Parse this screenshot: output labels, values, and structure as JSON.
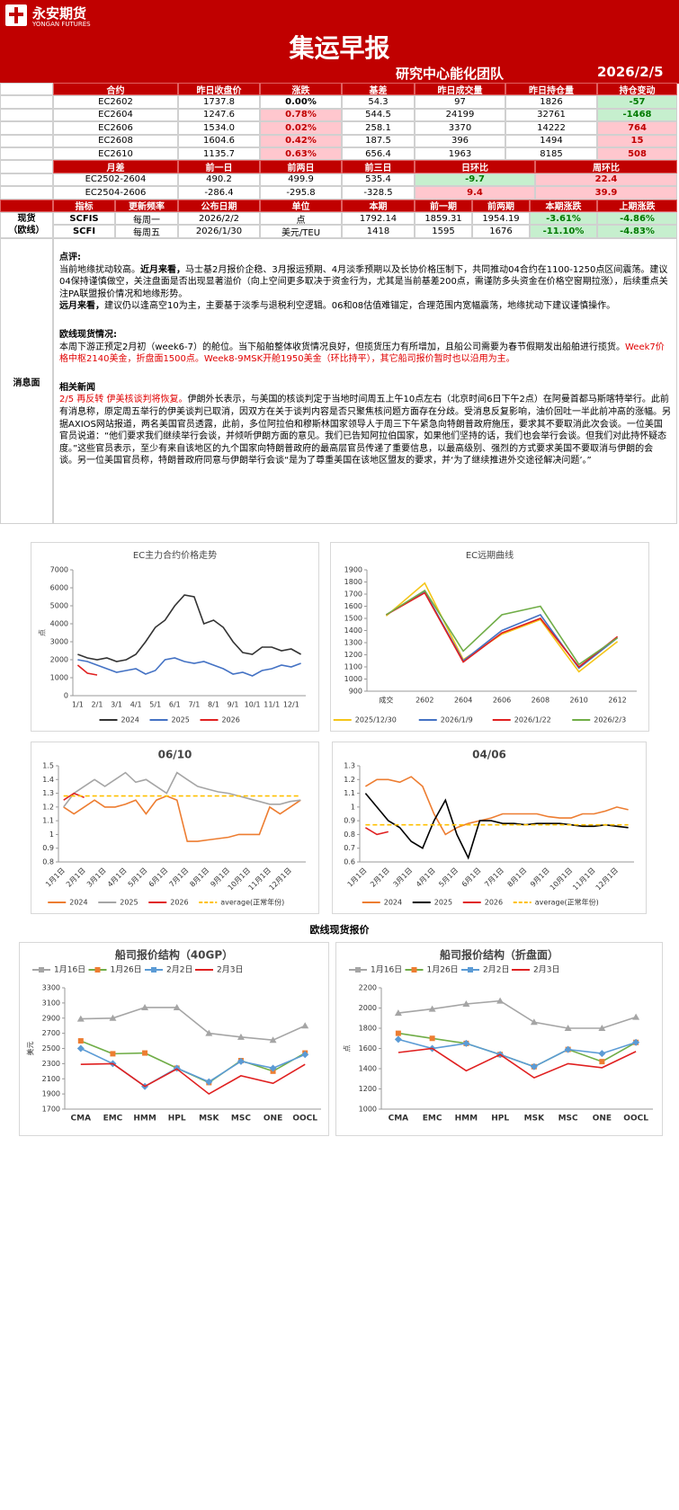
{
  "header": {
    "brand": "永安期货",
    "brand_en": "YONGAN FUTURES",
    "title": "集运早报",
    "team": "研究中心能化团队",
    "date": "2026/2/5"
  },
  "futures_table": {
    "columns": [
      "合约",
      "昨日收盘价",
      "涨跌",
      "基差",
      "昨日成交量",
      "昨日持仓量",
      "持仓变动"
    ],
    "rows": [
      [
        "EC2602",
        "1737.8",
        "0.00%",
        "54.3",
        "97",
        "1826",
        "-57"
      ],
      [
        "EC2604",
        "1247.6",
        "0.78%",
        "544.5",
        "24199",
        "32761",
        "-1468"
      ],
      [
        "EC2606",
        "1534.0",
        "0.02%",
        "258.1",
        "3370",
        "14222",
        "764"
      ],
      [
        "EC2608",
        "1604.6",
        "0.42%",
        "187.5",
        "396",
        "1494",
        "15"
      ],
      [
        "EC2610",
        "1135.7",
        "0.63%",
        "656.4",
        "1963",
        "8185",
        "508"
      ]
    ]
  },
  "spread_table": {
    "columns": [
      "月差",
      "前一日",
      "前两日",
      "前三日",
      "日环比",
      "周环比"
    ],
    "rows": [
      [
        "EC2502-2604",
        "490.2",
        "499.9",
        "535.4",
        "-9.7",
        "22.4"
      ],
      [
        "EC2504-2606",
        "-286.4",
        "-295.8",
        "-328.5",
        "9.4",
        "39.9"
      ]
    ]
  },
  "spot_table": {
    "section": [
      "现货",
      "（欧线）"
    ],
    "columns": [
      "指标",
      "更新频率",
      "公布日期",
      "单位",
      "本期",
      "前一期",
      "前两期",
      "本期涨跌",
      "上期涨跌"
    ],
    "rows": [
      [
        "SCFIS",
        "每周一",
        "2026/2/2",
        "点",
        "1792.14",
        "1859.31",
        "1954.19",
        "-3.61%",
        "-4.86%"
      ],
      [
        "SCFI",
        "每周五",
        "2026/1/30",
        "美元/TEU",
        "1418",
        "1595",
        "1676",
        "-11.10%",
        "-4.83%"
      ]
    ]
  },
  "news": {
    "section": "消息面",
    "blocks": [
      {
        "heading": "点评:",
        "paragraphs": [
          [
            {
              "text": "当前地缘扰动较高。",
              "style": "normal"
            },
            {
              "text": "近月来看，",
              "style": "bold"
            },
            {
              "text": "马士基2月报价企稳、3月报运预期、4月淡季预期以及长协价格压制下，共同推动04合约在1100-1250点区间震荡。建议04保持谨慎做空，关注盘面是否出现显著溢价（向上空间更多取决于资金行为，尤其是当前基差200点，需谨防多头资金在价格空窗期拉涨），后续重点关注PA联盟报价情况和地缘形势。",
              "style": "normal"
            }
          ],
          [
            {
              "text": "远月来看，",
              "style": "bold"
            },
            {
              "text": "建议仍以逢高空10为主，主要基于淡季与退税利空逻辑。06和08估值难锚定，合理范围内宽幅震荡，地缘扰动下建议谨慎操作。",
              "style": "normal"
            }
          ]
        ]
      },
      {
        "heading": "欧线现货情况:",
        "paragraphs": [
          [
            {
              "text": "本周下游正预定2月初（week6-7）的舱位。当下船舶整体收货情况良好，但揽货压力有所增加，且船公司需要为春节假期发出船舶进行揽货。",
              "style": "normal"
            },
            {
              "text": "Week7价格中枢2140美金，折盘面1500点。Week8-9MSK开舱1950美金（环比持平），其它船司报价暂时也以沿用为主。",
              "style": "red"
            }
          ]
        ]
      },
      {
        "heading": "相关新闻",
        "paragraphs": [
          [
            {
              "text": "2/5 再反转 伊美核谈判将恢复。",
              "style": "red"
            },
            {
              "text": "伊朗外长表示，与美国的核谈判定于当地时间周五上午10点左右（北京时间6日下午2点）在阿曼首都马斯喀特举行。此前有消息称，原定周五举行的伊美谈判已取消，因双方在关于谈判内容是否只聚焦核问题方面存在分歧。受消息反复影响，油价回吐一半此前冲高的涨幅。另据AXIOS网站报道，两名美国官员透露，此前，多位阿拉伯和穆斯林国家领导人于周三下午紧急向特朗普政府施压，要求其不要取消此次会谈。一位美国官员说道：“他们要求我们继续举行会谈，并倾听伊朗方面的意见。我们已告知阿拉伯国家，如果他们坚持的话，我们也会举行会谈。但我们对此持怀疑态度。”这些官员表示，至少有来自该地区的九个国家向特朗普政府的最高层官员传递了重要信息，以最高级别、强烈的方式要求美国不要取消与伊朗的会谈。另一位美国官员称，特朗普政府同意与伊朗举行会谈“是为了尊重美国在该地区盟友的要求，并‘为了继续推进外交途径解决问题’。”",
              "style": "normal"
            }
          ]
        ]
      }
    ]
  },
  "chart_section": "欧线现货报价",
  "chart_data": [
    {
      "type": "line",
      "title": "EC主力合约价格走势",
      "y_label": "点",
      "legend": "bottom",
      "categories": [
        "1/1",
        null,
        "2/1",
        null,
        "3/1",
        null,
        "4/1",
        null,
        "5/1",
        null,
        "6/1",
        null,
        "7/1",
        null,
        "8/1",
        null,
        "9/1",
        null,
        "10/1",
        null,
        "11/1",
        null,
        "12/1",
        null
      ],
      "ylim": [
        0,
        7000
      ],
      "yticks": [
        0,
        1000,
        2000,
        3000,
        4000,
        5000,
        6000,
        7000
      ],
      "series": [
        {
          "name": "2024",
          "color": "#333333",
          "values": [
            2300,
            2100,
            2000,
            2100,
            1900,
            2000,
            2300,
            3000,
            3800,
            4200,
            5000,
            5600,
            5500,
            4000,
            4200,
            3800,
            3000,
            2400,
            2300,
            2700,
            2700,
            2500,
            2600,
            2300
          ]
        },
        {
          "name": "2025",
          "color": "#4472c4",
          "values": [
            2000,
            1900,
            1700,
            1500,
            1300,
            1400,
            1500,
            1200,
            1400,
            2000,
            2100,
            1900,
            1800,
            1900,
            1700,
            1500,
            1200,
            1300,
            1100,
            1400,
            1500,
            1700,
            1600,
            1800
          ]
        },
        {
          "name": "2026",
          "color": "#e02020",
          "values": [
            1700,
            1250,
            1150,
            null,
            null,
            null,
            null,
            null,
            null,
            null,
            null,
            null,
            null,
            null,
            null,
            null,
            null,
            null,
            null,
            null,
            null,
            null,
            null,
            null
          ]
        }
      ]
    },
    {
      "type": "line",
      "title": "EC远期曲线",
      "legend": "bottom",
      "categories": [
        "成交",
        "2602",
        "2604",
        "2606",
        "2608",
        "2610",
        "2612"
      ],
      "ylim": [
        900,
        1900
      ],
      "yticks": [
        900,
        1000,
        1100,
        1200,
        1300,
        1400,
        1500,
        1600,
        1700,
        1800,
        1900
      ],
      "series": [
        {
          "name": "2025/12/30",
          "color": "#f5c518",
          "values": [
            1520,
            1790,
            1160,
            1370,
            1490,
            1060,
            1310
          ]
        },
        {
          "name": "2026/1/9",
          "color": "#4472c4",
          "values": [
            1530,
            1720,
            1150,
            1400,
            1530,
            1090,
            1340
          ]
        },
        {
          "name": "2026/1/22",
          "color": "#e02020",
          "values": [
            1530,
            1710,
            1140,
            1380,
            1500,
            1100,
            1350
          ]
        },
        {
          "name": "2026/2/3",
          "color": "#70ad47",
          "values": [
            1530,
            1730,
            1230,
            1530,
            1600,
            1120,
            1340
          ]
        }
      ]
    },
    {
      "type": "line",
      "title": "06/10",
      "legend": "bottom",
      "categories": [
        "1月1日",
        null,
        "2月1日",
        null,
        "3月1日",
        null,
        "4月1日",
        null,
        "5月1日",
        null,
        "6月1日",
        null,
        "7月1日",
        null,
        "8月1日",
        null,
        "9月1日",
        null,
        "10月1日",
        null,
        "11月1日",
        null,
        "12月1日",
        null
      ],
      "ylim": [
        0.8,
        1.5
      ],
      "yticks": [
        0.8,
        0.9,
        1,
        1.1,
        1.2,
        1.3,
        1.4,
        1.5
      ],
      "series": [
        {
          "name": "2024",
          "color": "#ed7d31",
          "values": [
            1.2,
            1.15,
            1.2,
            1.25,
            1.2,
            1.2,
            1.22,
            1.25,
            1.15,
            1.25,
            1.28,
            1.25,
            0.95,
            0.95,
            0.96,
            0.97,
            0.98,
            1.0,
            1.0,
            1.0,
            1.2,
            1.15,
            1.2,
            1.25
          ]
        },
        {
          "name": "2025",
          "color": "#a5a5a5",
          "values": [
            1.2,
            1.3,
            1.35,
            1.4,
            1.35,
            1.4,
            1.45,
            1.38,
            1.4,
            1.35,
            1.3,
            1.45,
            1.4,
            1.35,
            1.33,
            1.31,
            1.3,
            1.28,
            1.26,
            1.24,
            1.22,
            1.22,
            1.24,
            1.25
          ]
        },
        {
          "name": "2026",
          "color": "#e02020",
          "values": [
            1.25,
            1.3,
            1.27,
            null,
            null,
            null,
            null,
            null,
            null,
            null,
            null,
            null,
            null,
            null,
            null,
            null,
            null,
            null,
            null,
            null,
            null,
            null,
            null,
            null
          ]
        },
        {
          "name": "average(正常年份)",
          "color": "#ffc000",
          "dash": true,
          "values": [
            1.28,
            1.28,
            1.28,
            1.28,
            1.28,
            1.28,
            1.28,
            1.28,
            1.28,
            1.28,
            1.28,
            1.28,
            1.28,
            1.28,
            1.28,
            1.28,
            1.28,
            1.28,
            1.28,
            1.28,
            1.28,
            1.28,
            1.28,
            1.28
          ]
        }
      ]
    },
    {
      "type": "line",
      "title": "04/06",
      "legend": "bottom",
      "categories": [
        "1月1日",
        null,
        "2月1日",
        null,
        "3月1日",
        null,
        "4月1日",
        null,
        "5月1日",
        null,
        "6月1日",
        null,
        "7月1日",
        null,
        "8月1日",
        null,
        "9月1日",
        null,
        "10月1日",
        null,
        "11月1日",
        null,
        "12月1日",
        null
      ],
      "ylim": [
        0.6,
        1.3
      ],
      "yticks": [
        0.6,
        0.7,
        0.8,
        0.9,
        1,
        1.1,
        1.2,
        1.3
      ],
      "series": [
        {
          "name": "2024",
          "color": "#ed7d31",
          "values": [
            1.15,
            1.2,
            1.2,
            1.18,
            1.22,
            1.15,
            0.95,
            0.8,
            0.85,
            0.88,
            0.9,
            0.92,
            0.95,
            0.95,
            0.95,
            0.95,
            0.93,
            0.92,
            0.92,
            0.95,
            0.95,
            0.97,
            1.0,
            0.98
          ]
        },
        {
          "name": "2025",
          "color": "#000000",
          "values": [
            1.1,
            1.0,
            0.9,
            0.85,
            0.75,
            0.7,
            0.9,
            1.05,
            0.8,
            0.63,
            0.9,
            0.9,
            0.88,
            0.88,
            0.87,
            0.88,
            0.88,
            0.88,
            0.87,
            0.86,
            0.86,
            0.87,
            0.86,
            0.85
          ]
        },
        {
          "name": "2026",
          "color": "#e02020",
          "values": [
            0.85,
            0.8,
            0.82,
            null,
            null,
            null,
            null,
            null,
            null,
            null,
            null,
            null,
            null,
            null,
            null,
            null,
            null,
            null,
            null,
            null,
            null,
            null,
            null,
            null
          ]
        },
        {
          "name": "average(正常年份)",
          "color": "#ffc000",
          "dash": true,
          "values": [
            0.87,
            0.87,
            0.87,
            0.87,
            0.87,
            0.87,
            0.87,
            0.87,
            0.87,
            0.87,
            0.87,
            0.87,
            0.87,
            0.87,
            0.87,
            0.87,
            0.87,
            0.87,
            0.87,
            0.87,
            0.87,
            0.87,
            0.87,
            0.87
          ]
        }
      ]
    },
    {
      "type": "line",
      "title": "船司报价结构（40GP）",
      "y_label": "美元",
      "legend": "top",
      "categories": [
        "CMA",
        "EMC",
        "HMM",
        "HPL",
        "MSK",
        "MSC",
        "ONE",
        "OOCL"
      ],
      "ylim": [
        1700,
        3300
      ],
      "yticks": [
        1700,
        1900,
        2100,
        2300,
        2500,
        2700,
        2900,
        3100,
        3300
      ],
      "series": [
        {
          "name": "1月16日",
          "color": "#a5a5a5",
          "marker": "triangle",
          "values": [
            2890,
            2900,
            3040,
            3040,
            2700,
            2650,
            2610,
            2800
          ]
        },
        {
          "name": "1月26日",
          "color": "#70ad47",
          "marker": "square",
          "marker_color": "#ed7d31",
          "values": [
            2600,
            2430,
            2440,
            2240,
            2050,
            2340,
            2200,
            2440
          ]
        },
        {
          "name": "2月2日",
          "color": "#5b9bd5",
          "marker": "diamond",
          "values": [
            2500,
            2300,
            2000,
            2240,
            2060,
            2330,
            2240,
            2420
          ]
        },
        {
          "name": "2月3日",
          "color": "#e02020",
          "values": [
            2290,
            2300,
            2000,
            2230,
            1900,
            2140,
            2040,
            2290
          ]
        }
      ]
    },
    {
      "type": "line",
      "title": "船司报价结构（折盘面）",
      "y_label": "点",
      "legend": "top",
      "categories": [
        "CMA",
        "EMC",
        "HMM",
        "HPL",
        "MSK",
        "MSC",
        "ONE",
        "OOCL"
      ],
      "ylim": [
        1000,
        2200
      ],
      "yticks": [
        1000,
        1200,
        1400,
        1600,
        1800,
        2000,
        2200
      ],
      "series": [
        {
          "name": "1月16日",
          "color": "#a5a5a5",
          "marker": "triangle",
          "values": [
            1950,
            1990,
            2040,
            2070,
            1860,
            1800,
            1800,
            1910
          ]
        },
        {
          "name": "1月26日",
          "color": "#70ad47",
          "marker": "square",
          "marker_color": "#ed7d31",
          "values": [
            1750,
            1700,
            1650,
            1540,
            1420,
            1590,
            1470,
            1660
          ]
        },
        {
          "name": "2月2日",
          "color": "#5b9bd5",
          "marker": "diamond",
          "values": [
            1690,
            1600,
            1650,
            1540,
            1420,
            1590,
            1550,
            1660
          ]
        },
        {
          "name": "2月3日",
          "color": "#e02020",
          "values": [
            1560,
            1600,
            1380,
            1540,
            1310,
            1450,
            1410,
            1570
          ]
        }
      ]
    }
  ]
}
